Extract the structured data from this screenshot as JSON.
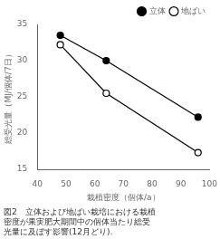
{
  "chart_data": {
    "type": "line",
    "x": [
      48,
      64,
      96
    ],
    "series": [
      {
        "name": "立体",
        "color": "#000000",
        "marker": "circle",
        "values": [
          33.5,
          30.0,
          22.2
        ]
      },
      {
        "name": "地ばい",
        "color": "#000000",
        "marker": "circle_open",
        "values": [
          32.2,
          25.5,
          17.3
        ]
      }
    ],
    "xlabel": "栽植密度（個体/a）",
    "ylabel": "総受光量（MJ/個体/7日）",
    "xlim": [
      40,
      100
    ],
    "ylim": [
      15,
      35
    ],
    "xticks": [
      40,
      50,
      60,
      70,
      80,
      90,
      100
    ],
    "yticks": [
      15,
      20,
      25,
      30,
      35
    ],
    "legend": "upper right",
    "grid": false,
    "annotations": [
      "図2　立体および地ばい栽培における栽植",
      "密度が果実肥大期間中の個体当たり総受",
      "光量に及ぼす影響(12月どり)."
    ]
  }
}
